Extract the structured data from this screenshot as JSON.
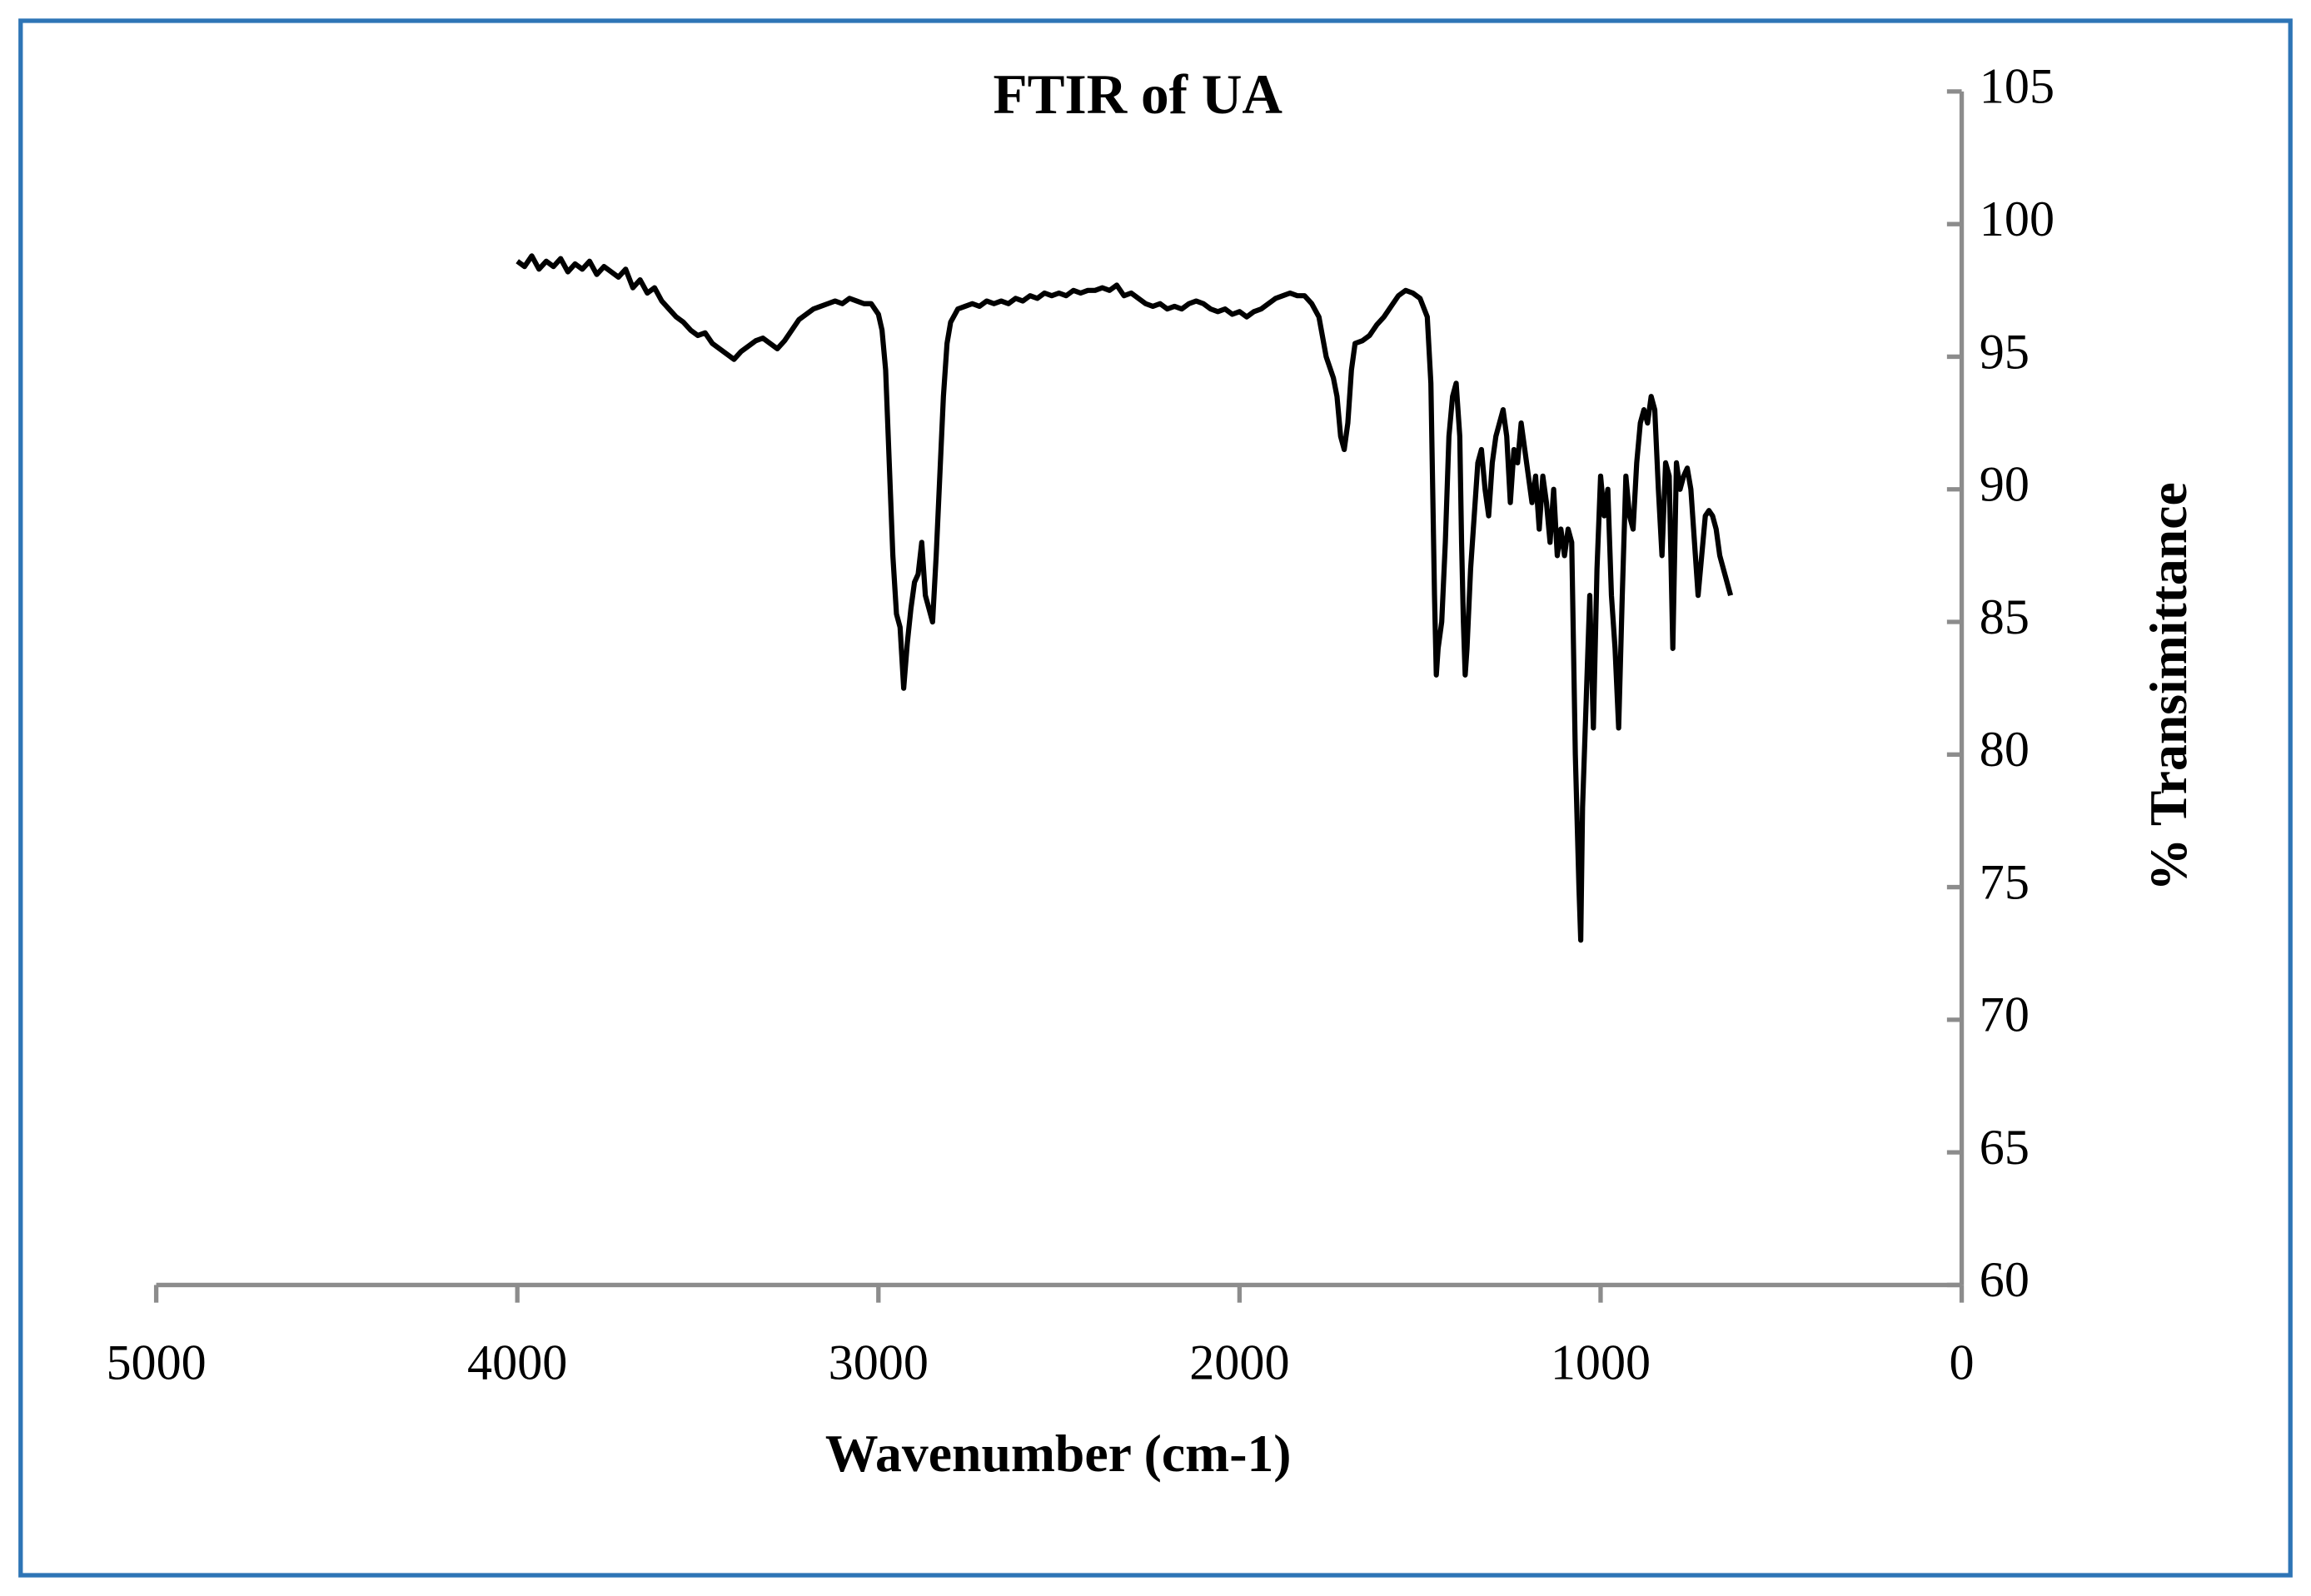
{
  "chart_data": {
    "type": "line",
    "title": "FTIR of UA",
    "x_label": "Wavenumber (cm-1)",
    "y_label": "% Transimittance",
    "xlim": [
      5000,
      0
    ],
    "xticks": [
      5000,
      4000,
      3000,
      2000,
      1000,
      0
    ],
    "ylim": [
      60,
      105
    ],
    "yticks": [
      60,
      65,
      70,
      75,
      80,
      85,
      90,
      95,
      100,
      105
    ],
    "x": [
      4000,
      3980,
      3960,
      3940,
      3920,
      3900,
      3880,
      3860,
      3840,
      3820,
      3800,
      3780,
      3760,
      3740,
      3720,
      3700,
      3680,
      3660,
      3640,
      3620,
      3600,
      3580,
      3560,
      3540,
      3520,
      3500,
      3480,
      3460,
      3440,
      3420,
      3400,
      3380,
      3360,
      3340,
      3320,
      3300,
      3280,
      3260,
      3240,
      3220,
      3200,
      3180,
      3160,
      3140,
      3120,
      3100,
      3080,
      3060,
      3040,
      3020,
      3000,
      2990,
      2980,
      2970,
      2960,
      2950,
      2940,
      2930,
      2920,
      2910,
      2900,
      2890,
      2880,
      2870,
      2860,
      2850,
      2840,
      2830,
      2820,
      2810,
      2800,
      2780,
      2760,
      2740,
      2720,
      2700,
      2680,
      2660,
      2640,
      2620,
      2600,
      2580,
      2560,
      2540,
      2520,
      2500,
      2480,
      2460,
      2440,
      2420,
      2400,
      2380,
      2360,
      2340,
      2320,
      2300,
      2280,
      2260,
      2240,
      2220,
      2200,
      2180,
      2160,
      2140,
      2120,
      2100,
      2080,
      2060,
      2040,
      2020,
      2000,
      1980,
      1960,
      1940,
      1920,
      1900,
      1880,
      1860,
      1840,
      1820,
      1800,
      1780,
      1760,
      1740,
      1730,
      1720,
      1710,
      1700,
      1690,
      1680,
      1660,
      1640,
      1620,
      1600,
      1580,
      1560,
      1540,
      1520,
      1500,
      1480,
      1470,
      1465,
      1460,
      1455,
      1450,
      1440,
      1430,
      1420,
      1410,
      1400,
      1390,
      1385,
      1380,
      1375,
      1370,
      1360,
      1350,
      1340,
      1330,
      1320,
      1310,
      1300,
      1290,
      1280,
      1270,
      1260,
      1250,
      1240,
      1230,
      1220,
      1210,
      1200,
      1190,
      1180,
      1170,
      1160,
      1150,
      1140,
      1130,
      1120,
      1110,
      1100,
      1090,
      1080,
      1070,
      1060,
      1055,
      1050,
      1040,
      1030,
      1020,
      1010,
      1000,
      990,
      980,
      970,
      960,
      950,
      940,
      930,
      920,
      910,
      900,
      890,
      880,
      870,
      860,
      850,
      840,
      830,
      820,
      810,
      800,
      790,
      780,
      770,
      760,
      750,
      740,
      730,
      720,
      710,
      700,
      690,
      680,
      670,
      660,
      650,
      640
    ],
    "series": [
      {
        "name": "UA",
        "color": "#000000",
        "values": [
          98.6,
          98.4,
          98.8,
          98.3,
          98.6,
          98.4,
          98.7,
          98.2,
          98.5,
          98.3,
          98.6,
          98.1,
          98.4,
          98.2,
          98.0,
          98.3,
          97.6,
          97.9,
          97.4,
          97.6,
          97.1,
          96.8,
          96.5,
          96.3,
          96.0,
          95.8,
          95.9,
          95.5,
          95.3,
          95.1,
          94.9,
          95.2,
          95.4,
          95.6,
          95.7,
          95.5,
          95.3,
          95.6,
          96.0,
          96.4,
          96.6,
          96.8,
          96.9,
          97.0,
          97.1,
          97.0,
          97.2,
          97.1,
          97.0,
          97.0,
          96.6,
          96.0,
          94.5,
          91,
          87.5,
          85.3,
          84.8,
          82.5,
          84.2,
          85.5,
          86.5,
          86.8,
          88.0,
          86.0,
          85.5,
          85.0,
          87.5,
          90.5,
          93.5,
          95.5,
          96.3,
          96.8,
          96.9,
          97.0,
          96.9,
          97.1,
          97.0,
          97.1,
          97.0,
          97.2,
          97.1,
          97.3,
          97.2,
          97.4,
          97.3,
          97.4,
          97.3,
          97.5,
          97.4,
          97.5,
          97.5,
          97.6,
          97.5,
          97.7,
          97.3,
          97.4,
          97.2,
          97.0,
          96.9,
          97.0,
          96.8,
          96.9,
          96.8,
          97.0,
          97.1,
          97.0,
          96.8,
          96.7,
          96.8,
          96.6,
          96.7,
          96.5,
          96.7,
          96.8,
          97.0,
          97.2,
          97.3,
          97.4,
          97.3,
          97.3,
          97.0,
          96.5,
          95.0,
          94.2,
          93.5,
          92.0,
          91.5,
          92.5,
          94.5,
          95.5,
          95.6,
          95.8,
          96.2,
          96.5,
          96.9,
          97.3,
          97.5,
          97.4,
          97.2,
          96.5,
          94,
          90,
          86,
          83,
          84,
          85,
          88,
          92,
          93.5,
          94.0,
          92,
          88,
          85,
          83,
          84,
          87,
          89,
          91,
          91.5,
          90,
          89,
          91,
          92,
          92.5,
          93,
          92,
          89.5,
          91.5,
          91,
          92.5,
          91.5,
          90.5,
          89.5,
          90.5,
          88.5,
          90.5,
          89.5,
          88,
          90,
          87.5,
          88.5,
          87.5,
          88.5,
          88,
          80,
          75,
          73,
          78,
          82,
          86,
          81,
          87,
          90.5,
          89,
          90,
          86,
          84,
          81,
          86,
          90.5,
          89,
          88.5,
          91,
          92.5,
          93,
          92.5,
          93.5,
          93,
          90,
          87.5,
          91,
          90.5,
          84,
          91,
          90,
          90.5,
          90.8,
          90,
          88,
          86,
          87.5,
          89,
          89.2,
          89,
          88.5,
          87.5,
          87,
          86.5,
          86
        ]
      }
    ]
  }
}
